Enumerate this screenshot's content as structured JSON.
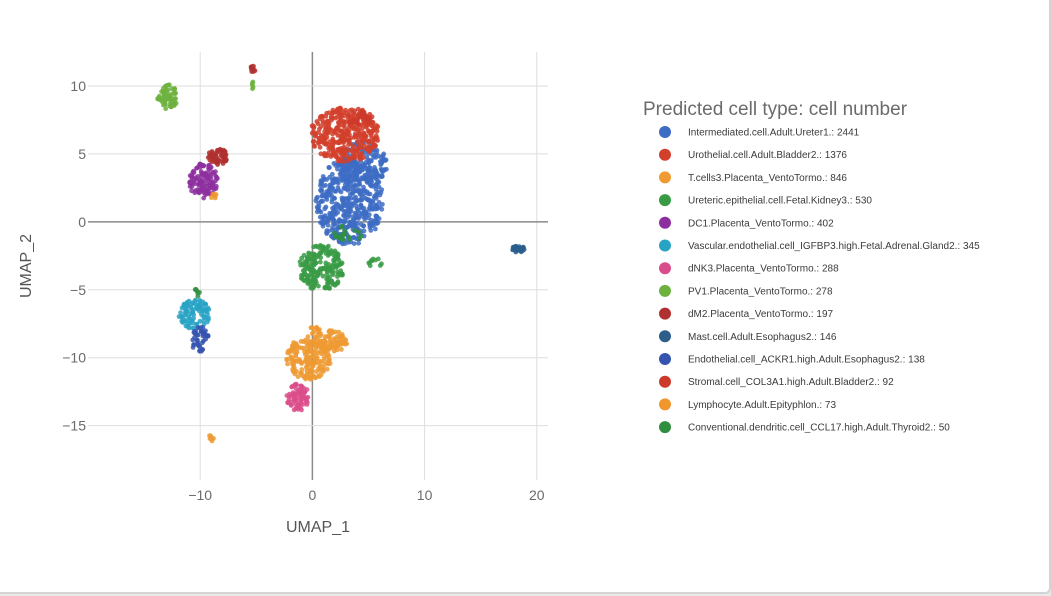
{
  "chart_data": {
    "type": "scatter",
    "xlabel": "UMAP_1",
    "ylabel": "UMAP_2",
    "xlim": [
      -20,
      21
    ],
    "ylim": [
      -19,
      12.5
    ],
    "x_ticks": [
      -10,
      0,
      10,
      20
    ],
    "y_ticks": [
      10,
      5,
      0,
      -5,
      -10,
      -15
    ],
    "grid": true,
    "legend_title": "Predicted cell type: cell number",
    "legend_position": "right",
    "series": [
      {
        "name": "Intermediated.cell.Adult.Ureter1.: 2441",
        "color": "#3d6cc4",
        "clusters": [
          {
            "cx": 3.3,
            "cy": 1.5,
            "rx": 3.0,
            "ry": 3.2,
            "n": 460
          },
          {
            "cx": 4.5,
            "cy": 4.2,
            "rx": 2.2,
            "ry": 1.8,
            "n": 160
          }
        ]
      },
      {
        "name": "Urothelial.cell.Adult.Bladder2.: 1376",
        "color": "#d2402b",
        "clusters": [
          {
            "cx": 2.9,
            "cy": 6.4,
            "rx": 3.1,
            "ry": 2.0,
            "n": 360
          }
        ]
      },
      {
        "name": "T.cells3.Placenta_VentoTormo.: 846",
        "color": "#ef9a32",
        "clusters": [
          {
            "cx": -0.3,
            "cy": -10.0,
            "rx": 2.0,
            "ry": 1.6,
            "n": 180
          },
          {
            "cx": 1.6,
            "cy": -8.8,
            "rx": 1.5,
            "ry": 0.8,
            "n": 80
          },
          {
            "cx": -9.0,
            "cy": -15.9,
            "rx": 0.25,
            "ry": 0.3,
            "n": 6
          }
        ]
      },
      {
        "name": "Ureteric.epithelial.cell.Fetal.Kidney3.: 530",
        "color": "#3a9b45",
        "clusters": [
          {
            "cx": 0.8,
            "cy": -3.4,
            "rx": 2.0,
            "ry": 1.7,
            "n": 200
          },
          {
            "cx": 5.6,
            "cy": -3.0,
            "rx": 0.7,
            "ry": 0.3,
            "n": 10
          }
        ]
      },
      {
        "name": "DC1.Placenta_VentoTormo.: 402",
        "color": "#8d2f9f",
        "clusters": [
          {
            "cx": -9.7,
            "cy": 3.0,
            "rx": 1.3,
            "ry": 1.3,
            "n": 110
          }
        ]
      },
      {
        "name": "Vascular.endothelial.cell_IGFBP3.high.Fetal.Adrenal.Gland2.: 345",
        "color": "#29a3c4",
        "clusters": [
          {
            "cx": -10.5,
            "cy": -6.8,
            "rx": 1.4,
            "ry": 1.1,
            "n": 90
          }
        ]
      },
      {
        "name": "dNK3.Placenta_VentoTormo.: 288",
        "color": "#db4d8a",
        "clusters": [
          {
            "cx": -1.3,
            "cy": -12.9,
            "rx": 1.0,
            "ry": 1.0,
            "n": 70
          }
        ]
      },
      {
        "name": "PV1.Placenta_VentoTormo.: 278",
        "color": "#6db23e",
        "clusters": [
          {
            "cx": -12.9,
            "cy": 9.2,
            "rx": 0.9,
            "ry": 0.9,
            "n": 60
          },
          {
            "cx": -5.3,
            "cy": 10.0,
            "rx": 0.15,
            "ry": 0.3,
            "n": 5
          }
        ]
      },
      {
        "name": "dM2.Placenta_VentoTormo.: 197",
        "color": "#b0302f",
        "clusters": [
          {
            "cx": -8.4,
            "cy": 4.8,
            "rx": 0.9,
            "ry": 0.6,
            "n": 55
          },
          {
            "cx": -5.3,
            "cy": 11.1,
            "rx": 0.25,
            "ry": 0.4,
            "n": 10
          }
        ]
      },
      {
        "name": "Mast.cell.Adult.Esophagus2.: 146",
        "color": "#2c5e8c",
        "clusters": [
          {
            "cx": 18.3,
            "cy": -2.0,
            "rx": 0.6,
            "ry": 0.25,
            "n": 30
          }
        ]
      },
      {
        "name": "Endothelial.cell_ACKR1.high.Adult.Esophagus2.: 138",
        "color": "#3554b0",
        "clusters": [
          {
            "cx": -10.0,
            "cy": -8.7,
            "rx": 0.8,
            "ry": 1.0,
            "n": 40
          }
        ]
      },
      {
        "name": "Stromal.cell_COL3A1.high.Adult.Bladder2.: 92",
        "color": "#cc3a2a",
        "clusters": [
          {
            "cx": 4.2,
            "cy": 7.7,
            "rx": 1.2,
            "ry": 0.6,
            "n": 30
          }
        ]
      },
      {
        "name": "Lymphocyte.Adult.Epityphlon.: 73",
        "color": "#f0962c",
        "clusters": [
          {
            "cx": -8.8,
            "cy": 2.0,
            "rx": 0.3,
            "ry": 0.3,
            "n": 8
          },
          {
            "cx": 0.2,
            "cy": -7.9,
            "rx": 0.5,
            "ry": 0.4,
            "n": 10
          }
        ]
      },
      {
        "name": "Conventional.dendritic.cell_CCL17.high.Adult.Thyroid2.: 50",
        "color": "#2f8f3f",
        "clusters": [
          {
            "cx": 3.2,
            "cy": -0.8,
            "rx": 1.5,
            "ry": 0.6,
            "n": 20
          },
          {
            "cx": -10.3,
            "cy": -5.2,
            "rx": 0.3,
            "ry": 0.3,
            "n": 6
          }
        ]
      }
    ]
  }
}
